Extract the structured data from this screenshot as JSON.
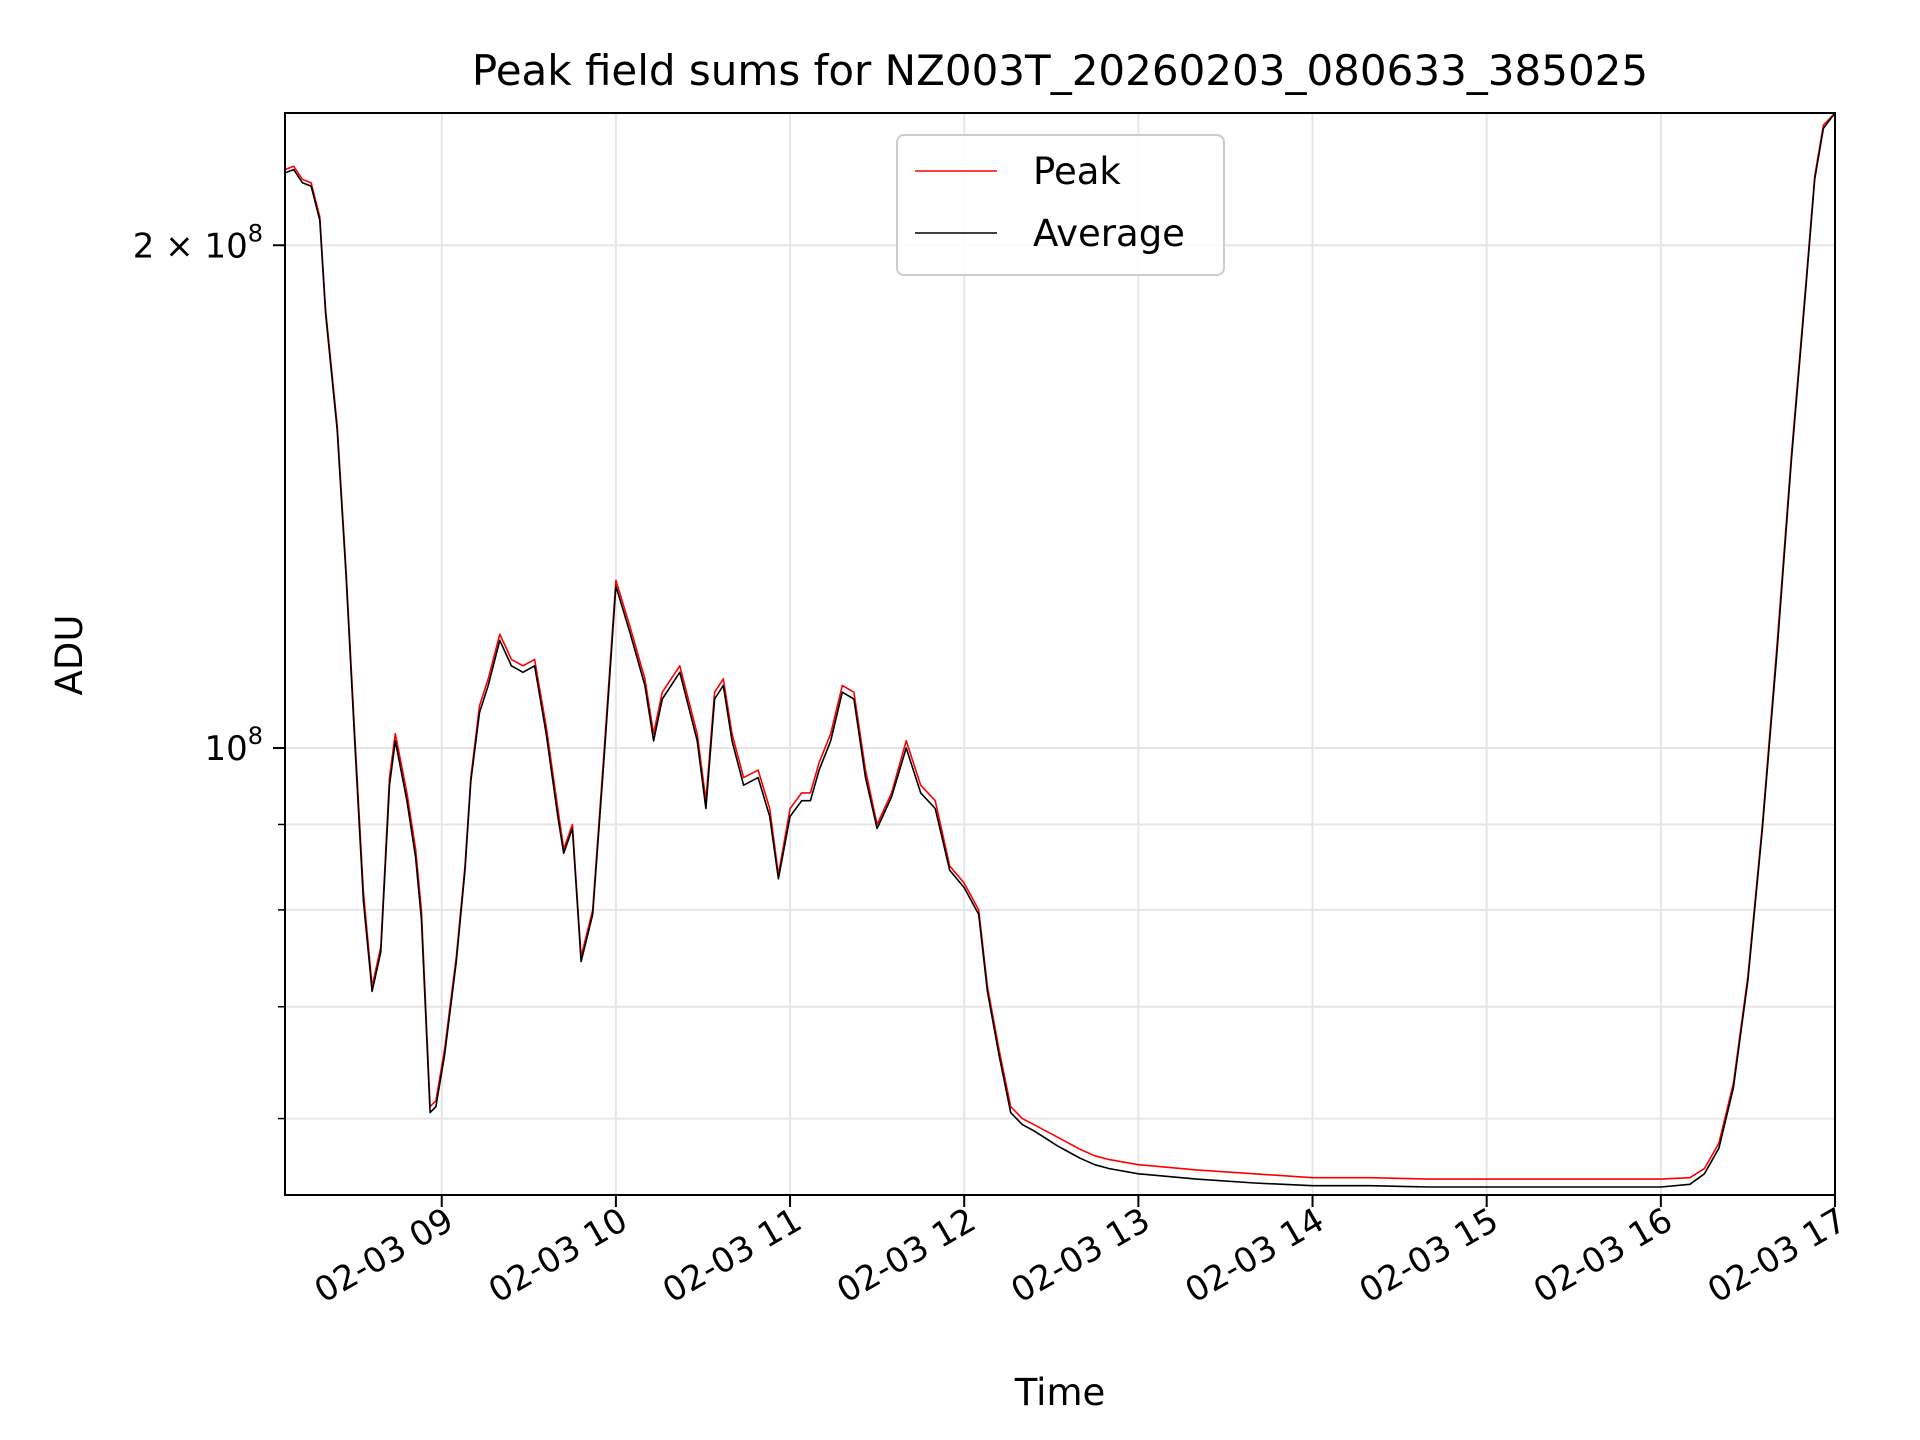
{
  "chart_data": {
    "type": "line",
    "title": "Peak field sums for NZ003T_20260203_080633_385025",
    "xlabel": "Time",
    "ylabel": "ADU",
    "y_scale": "log",
    "xlim": [
      "2026-02-03 08:06",
      "2026-02-03 17:00"
    ],
    "ylim": [
      54000000,
      240000000
    ],
    "grid": true,
    "legend_position": "upper center",
    "x_ticks": [
      {
        "value": "2026-02-03 09:00",
        "label": "02-03 09"
      },
      {
        "value": "2026-02-03 10:00",
        "label": "02-03 10"
      },
      {
        "value": "2026-02-03 11:00",
        "label": "02-03 11"
      },
      {
        "value": "2026-02-03 12:00",
        "label": "02-03 12"
      },
      {
        "value": "2026-02-03 13:00",
        "label": "02-03 13"
      },
      {
        "value": "2026-02-03 14:00",
        "label": "02-03 14"
      },
      {
        "value": "2026-02-03 15:00",
        "label": "02-03 15"
      },
      {
        "value": "2026-02-03 16:00",
        "label": "02-03 16"
      },
      {
        "value": "2026-02-03 17:00",
        "label": "02-03 17"
      }
    ],
    "y_major_ticks": [
      {
        "value": 100000000,
        "base": "10",
        "exp": "8"
      },
      {
        "value": 200000000,
        "coef": "2",
        "base": "10",
        "exp": "8"
      }
    ],
    "y_minor_ticks": [
      60000000,
      70000000,
      80000000,
      90000000
    ],
    "series": [
      {
        "name": "Peak",
        "color": "#ff0000",
        "x": [
          "2026-02-03 08:06",
          "2026-02-03 08:09",
          "2026-02-03 08:12",
          "2026-02-03 08:15",
          "2026-02-03 08:18",
          "2026-02-03 08:20",
          "2026-02-03 08:24",
          "2026-02-03 08:27",
          "2026-02-03 08:30",
          "2026-02-03 08:33",
          "2026-02-03 08:36",
          "2026-02-03 08:39",
          "2026-02-03 08:42",
          "2026-02-03 08:44",
          "2026-02-03 08:48",
          "2026-02-03 08:51",
          "2026-02-03 08:53",
          "2026-02-03 08:56",
          "2026-02-03 08:58",
          "2026-02-03 09:01",
          "2026-02-03 09:05",
          "2026-02-03 09:08",
          "2026-02-03 09:10",
          "2026-02-03 09:13",
          "2026-02-03 09:16",
          "2026-02-03 09:20",
          "2026-02-03 09:24",
          "2026-02-03 09:28",
          "2026-02-03 09:32",
          "2026-02-03 09:36",
          "2026-02-03 09:40",
          "2026-02-03 09:42",
          "2026-02-03 09:45",
          "2026-02-03 09:48",
          "2026-02-03 09:52",
          "2026-02-03 09:56",
          "2026-02-03 10:00",
          "2026-02-03 10:05",
          "2026-02-03 10:10",
          "2026-02-03 10:13",
          "2026-02-03 10:16",
          "2026-02-03 10:22",
          "2026-02-03 10:28",
          "2026-02-03 10:31",
          "2026-02-03 10:34",
          "2026-02-03 10:37",
          "2026-02-03 10:40",
          "2026-02-03 10:44",
          "2026-02-03 10:49",
          "2026-02-03 10:53",
          "2026-02-03 10:56",
          "2026-02-03 11:00",
          "2026-02-03 11:04",
          "2026-02-03 11:07",
          "2026-02-03 11:10",
          "2026-02-03 11:14",
          "2026-02-03 11:18",
          "2026-02-03 11:22",
          "2026-02-03 11:26",
          "2026-02-03 11:30",
          "2026-02-03 11:35",
          "2026-02-03 11:40",
          "2026-02-03 11:45",
          "2026-02-03 11:50",
          "2026-02-03 11:55",
          "2026-02-03 12:00",
          "2026-02-03 12:05",
          "2026-02-03 12:08",
          "2026-02-03 12:12",
          "2026-02-03 12:16",
          "2026-02-03 12:20",
          "2026-02-03 12:24",
          "2026-02-03 12:28",
          "2026-02-03 12:32",
          "2026-02-03 12:36",
          "2026-02-03 12:40",
          "2026-02-03 12:45",
          "2026-02-03 12:50",
          "2026-02-03 13:00",
          "2026-02-03 13:20",
          "2026-02-03 13:40",
          "2026-02-03 14:00",
          "2026-02-03 14:20",
          "2026-02-03 14:40",
          "2026-02-03 15:00",
          "2026-02-03 15:20",
          "2026-02-03 15:40",
          "2026-02-03 16:00",
          "2026-02-03 16:10",
          "2026-02-03 16:15",
          "2026-02-03 16:20",
          "2026-02-03 16:25",
          "2026-02-03 16:30",
          "2026-02-03 16:35",
          "2026-02-03 16:40",
          "2026-02-03 16:45",
          "2026-02-03 16:50",
          "2026-02-03 16:53",
          "2026-02-03 16:56",
          "2026-02-03 17:00"
        ],
        "y": [
          222000000,
          223000000,
          219000000,
          218000000,
          208000000,
          183000000,
          156000000,
          128000000,
          102000000,
          82000000,
          72000000,
          76000000,
          96000000,
          102000000,
          94000000,
          87000000,
          80000000,
          61000000,
          61500000,
          66000000,
          75000000,
          85000000,
          96000000,
          106000000,
          110000000,
          117000000,
          113000000,
          112000000,
          113000000,
          103000000,
          92000000,
          87000000,
          90000000,
          75000000,
          80000000,
          100000000,
          126000000,
          118000000,
          110000000,
          102000000,
          108000000,
          112000000,
          102000000,
          93000000,
          108000000,
          110000000,
          102000000,
          96000000,
          97000000,
          92000000,
          84000000,
          92000000,
          94000000,
          94000000,
          98000000,
          102000000,
          109000000,
          108000000,
          97000000,
          90000000,
          94000000,
          101000000,
          95000000,
          93000000,
          85000000,
          83000000,
          80000000,
          72000000,
          66000000,
          61000000,
          60000000,
          59500000,
          59000000,
          58500000,
          58000000,
          57500000,
          57000000,
          56700000,
          56300000,
          55900000,
          55600000,
          55300000,
          55300000,
          55200000,
          55200000,
          55200000,
          55200000,
          55200000,
          55300000,
          56000000,
          58000000,
          63000000,
          73000000,
          90000000,
          115000000,
          150000000,
          190000000,
          220000000,
          236000000,
          240000000
        ]
      },
      {
        "name": "Average",
        "color": "#000000",
        "x": [
          "2026-02-03 08:06",
          "2026-02-03 08:09",
          "2026-02-03 08:12",
          "2026-02-03 08:15",
          "2026-02-03 08:18",
          "2026-02-03 08:20",
          "2026-02-03 08:24",
          "2026-02-03 08:27",
          "2026-02-03 08:30",
          "2026-02-03 08:33",
          "2026-02-03 08:36",
          "2026-02-03 08:39",
          "2026-02-03 08:42",
          "2026-02-03 08:44",
          "2026-02-03 08:48",
          "2026-02-03 08:51",
          "2026-02-03 08:53",
          "2026-02-03 08:56",
          "2026-02-03 08:58",
          "2026-02-03 09:01",
          "2026-02-03 09:05",
          "2026-02-03 09:08",
          "2026-02-03 09:10",
          "2026-02-03 09:13",
          "2026-02-03 09:16",
          "2026-02-03 09:20",
          "2026-02-03 09:24",
          "2026-02-03 09:28",
          "2026-02-03 09:32",
          "2026-02-03 09:36",
          "2026-02-03 09:40",
          "2026-02-03 09:42",
          "2026-02-03 09:45",
          "2026-02-03 09:48",
          "2026-02-03 09:52",
          "2026-02-03 09:56",
          "2026-02-03 10:00",
          "2026-02-03 10:05",
          "2026-02-03 10:10",
          "2026-02-03 10:13",
          "2026-02-03 10:16",
          "2026-02-03 10:22",
          "2026-02-03 10:28",
          "2026-02-03 10:31",
          "2026-02-03 10:34",
          "2026-02-03 10:37",
          "2026-02-03 10:40",
          "2026-02-03 10:44",
          "2026-02-03 10:49",
          "2026-02-03 10:53",
          "2026-02-03 10:56",
          "2026-02-03 11:00",
          "2026-02-03 11:04",
          "2026-02-03 11:07",
          "2026-02-03 11:10",
          "2026-02-03 11:14",
          "2026-02-03 11:18",
          "2026-02-03 11:22",
          "2026-02-03 11:26",
          "2026-02-03 11:30",
          "2026-02-03 11:35",
          "2026-02-03 11:40",
          "2026-02-03 11:45",
          "2026-02-03 11:50",
          "2026-02-03 11:55",
          "2026-02-03 12:00",
          "2026-02-03 12:05",
          "2026-02-03 12:08",
          "2026-02-03 12:12",
          "2026-02-03 12:16",
          "2026-02-03 12:20",
          "2026-02-03 12:24",
          "2026-02-03 12:28",
          "2026-02-03 12:32",
          "2026-02-03 12:36",
          "2026-02-03 12:40",
          "2026-02-03 12:45",
          "2026-02-03 12:50",
          "2026-02-03 13:00",
          "2026-02-03 13:20",
          "2026-02-03 13:40",
          "2026-02-03 14:00",
          "2026-02-03 14:20",
          "2026-02-03 14:40",
          "2026-02-03 15:00",
          "2026-02-03 15:20",
          "2026-02-03 15:40",
          "2026-02-03 16:00",
          "2026-02-03 16:10",
          "2026-02-03 16:15",
          "2026-02-03 16:20",
          "2026-02-03 16:25",
          "2026-02-03 16:30",
          "2026-02-03 16:35",
          "2026-02-03 16:40",
          "2026-02-03 16:45",
          "2026-02-03 16:50",
          "2026-02-03 16:53",
          "2026-02-03 16:56",
          "2026-02-03 17:00"
        ],
        "y": [
          221000000,
          222000000,
          218000000,
          217000000,
          207000000,
          182000000,
          155000000,
          127000000,
          101000000,
          81000000,
          71500000,
          75500000,
          95000000,
          101000000,
          93000000,
          86000000,
          79000000,
          60500000,
          61000000,
          65500000,
          74500000,
          84500000,
          95500000,
          105000000,
          109000000,
          116000000,
          112000000,
          111000000,
          112000000,
          102000000,
          91000000,
          86500000,
          89500000,
          74500000,
          79500000,
          99000000,
          125000000,
          117000000,
          109000000,
          101000000,
          107000000,
          111000000,
          101000000,
          92000000,
          107000000,
          109000000,
          101000000,
          95000000,
          96000000,
          91000000,
          83500000,
          91000000,
          93000000,
          93000000,
          97000000,
          101000000,
          108000000,
          107000000,
          96000000,
          89500000,
          93500000,
          100000000,
          94000000,
          92000000,
          84500000,
          82500000,
          79500000,
          71500000,
          65500000,
          60500000,
          59500000,
          59000000,
          58400000,
          57800000,
          57300000,
          56800000,
          56300000,
          56000000,
          55600000,
          55200000,
          54900000,
          54700000,
          54700000,
          54600000,
          54600000,
          54600000,
          54600000,
          54600000,
          54800000,
          55600000,
          57600000,
          62600000,
          72600000,
          89500000,
          114000000,
          149000000,
          189000000,
          219000000,
          235000000,
          240000000
        ]
      }
    ]
  }
}
